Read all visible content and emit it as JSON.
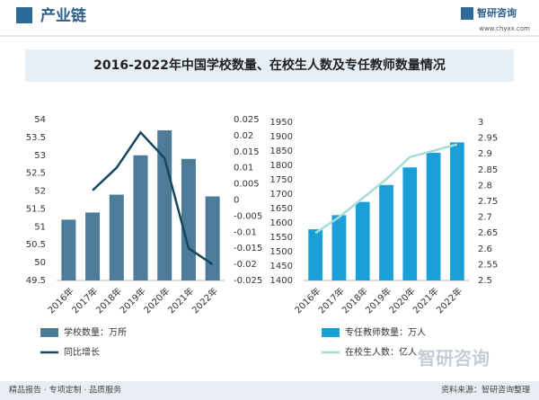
{
  "header": {
    "section": "产业链",
    "logo": "智研咨询",
    "url": "www.chyxx.com"
  },
  "title": "2016-2022年中国学校数量、在校生人数及专任教师数量情况",
  "chart_data": [
    {
      "type": "combo",
      "categories": [
        "2016年",
        "2017年",
        "2018年",
        "2019年",
        "2020年",
        "2021年",
        "2022年"
      ],
      "ylim": [
        49.5,
        54
      ],
      "yticks": [
        49.5,
        50,
        50.5,
        51,
        51.5,
        52,
        52.5,
        53,
        53.5,
        54
      ],
      "y2lim": [
        -0.025,
        0.025
      ],
      "y2ticks": [
        -0.025,
        -0.02,
        -0.015,
        -0.01,
        -0.005,
        0,
        0.005,
        0.01,
        0.015,
        0.02,
        0.025
      ],
      "series": [
        {
          "name": "学校数量：万所",
          "type": "bar",
          "color": "#4d7c98",
          "values": [
            51.2,
            51.4,
            51.9,
            53.0,
            53.7,
            52.9,
            51.85
          ]
        },
        {
          "name": "同比增长",
          "type": "line",
          "axis": "y2",
          "color": "#17455e",
          "values": [
            null,
            0.003,
            0.01,
            0.021,
            0.013,
            -0.015,
            -0.02
          ]
        }
      ]
    },
    {
      "type": "combo",
      "categories": [
        "2016年",
        "2017年",
        "2018年",
        "2019年",
        "2020年",
        "2021年",
        "2022年"
      ],
      "ylim": [
        1400,
        1950
      ],
      "yticks": [
        1400,
        1450,
        1500,
        1550,
        1600,
        1650,
        1700,
        1750,
        1800,
        1850,
        1900,
        1950
      ],
      "y2lim": [
        2.5,
        3
      ],
      "y2ticks": [
        2.5,
        2.55,
        2.6,
        2.65,
        2.7,
        2.75,
        2.8,
        2.85,
        2.9,
        2.95,
        3
      ],
      "series": [
        {
          "name": "专任教师数量：万人",
          "type": "bar",
          "color": "#1a9fd8",
          "values": [
            1578,
            1627,
            1673,
            1732,
            1793,
            1844,
            1880
          ]
        },
        {
          "name": "在校生人数：亿人",
          "type": "line",
          "axis": "y2",
          "color": "#a6dbd6",
          "values": [
            2.65,
            2.7,
            2.76,
            2.82,
            2.89,
            2.91,
            2.93
          ]
        }
      ]
    }
  ],
  "footer": {
    "slogan": "精品报告 · 专项定制 · 品质服务",
    "source": "资料来源：智研咨询整理"
  }
}
